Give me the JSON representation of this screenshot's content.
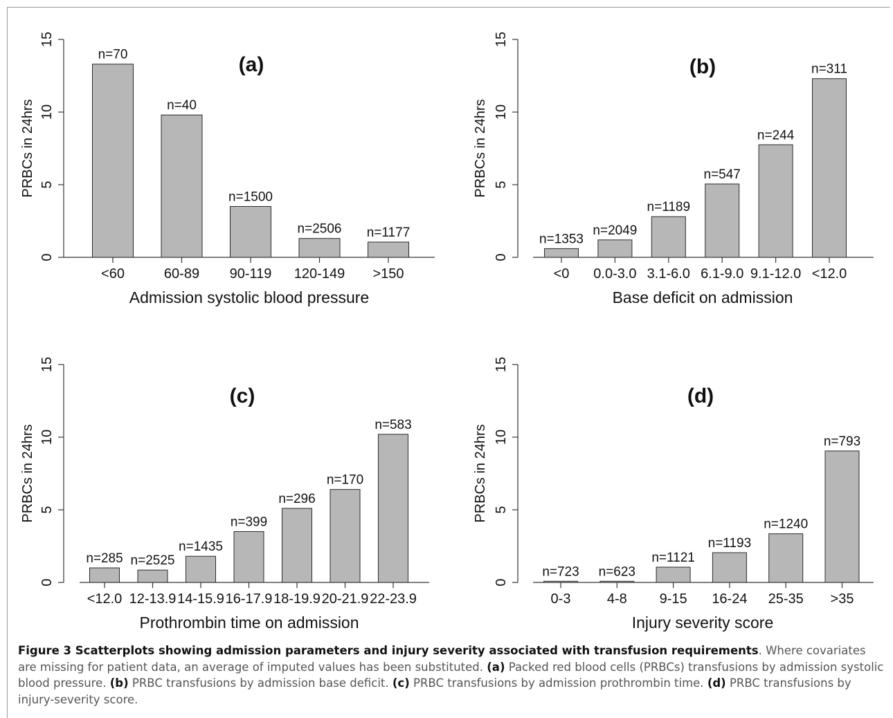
{
  "chart_data": [
    {
      "type": "bar",
      "panel_label": "(a)",
      "xlabel": "Admission systolic blood pressure",
      "ylabel": "PRBCs in 24hrs",
      "ylim": [
        0,
        15
      ],
      "yticks": [
        "0",
        "5",
        "10",
        "15"
      ],
      "grid": false,
      "categories": [
        "<60",
        "60-89",
        "90-119",
        "120-149",
        ">150"
      ],
      "values": [
        13.3,
        9.8,
        3.5,
        1.3,
        1.05
      ],
      "bar_labels": [
        "n=70",
        "n=40",
        "n=1500",
        "n=2506",
        "n=1177"
      ]
    },
    {
      "type": "bar",
      "panel_label": "(b)",
      "xlabel": "Base deficit on admission",
      "ylabel": "PRBCs in 24hrs",
      "ylim": [
        0,
        15
      ],
      "yticks": [
        "0",
        "5",
        "10",
        "15"
      ],
      "grid": false,
      "categories": [
        "<0",
        "0.0-3.0",
        "3.1-6.0",
        "6.1-9.0",
        "9.1-12.0",
        "<12.0"
      ],
      "values": [
        0.6,
        1.2,
        2.8,
        5.05,
        7.75,
        12.3
      ],
      "bar_labels": [
        "n=1353",
        "n=2049",
        "n=1189",
        "n=547",
        "n=244",
        "n=311"
      ]
    },
    {
      "type": "bar",
      "panel_label": "(c)",
      "xlabel": "Prothrombin time on admission",
      "ylabel": "PRBCs in 24hrs",
      "ylim": [
        0,
        15
      ],
      "yticks": [
        "0",
        "5",
        "10",
        "15"
      ],
      "grid": false,
      "categories": [
        "<12.0",
        "12-13.9",
        "14-15.9",
        "16-17.9",
        "18-19.9",
        "20-21.9",
        "22-23.9"
      ],
      "values": [
        1.0,
        0.85,
        1.8,
        3.5,
        5.1,
        6.4,
        10.2
      ],
      "bar_labels": [
        "n=285",
        "n=2525",
        "n=1435",
        "n=399",
        "n=296",
        "n=170",
        "n=583"
      ]
    },
    {
      "type": "bar",
      "panel_label": "(d)",
      "xlabel": "Injury severity score",
      "ylabel": "PRBCs in 24hrs",
      "ylim": [
        0,
        15
      ],
      "yticks": [
        "0",
        "5",
        "10",
        "15"
      ],
      "grid": false,
      "categories": [
        "0-3",
        "4-8",
        "9-15",
        "16-24",
        "25-35",
        ">35"
      ],
      "values": [
        0.08,
        0.08,
        1.05,
        2.05,
        3.35,
        9.05
      ],
      "bar_labels": [
        "n=723",
        "n=623",
        "n=1121",
        "n=1193",
        "n=1240",
        "n=793"
      ]
    }
  ],
  "caption": {
    "title": "Figure 3 Scatterplots showing admission parameters and injury severity associated with transfusion requirements",
    "intro": ". Where covariates are missing for patient data, an average of imputed values has been substituted. ",
    "a_label": "(a)",
    "a_text": " Packed red blood cells (PRBCs) transfusions by admission systolic blood pressure. ",
    "b_label": "(b)",
    "b_text": " PRBC transfusions by admission base deficit. ",
    "c_label": "(c)",
    "c_text": " PRBC transfusions by admission prothrombin time. ",
    "d_label": "(d)",
    "d_text": " PRBC transfusions by injury-severity score."
  },
  "colors": {
    "bar_fill": "#b7b7b7",
    "bar_stroke": "#2a2a2a",
    "axis": "#333333",
    "caption_text": "#555555",
    "caption_bold": "#111111"
  }
}
